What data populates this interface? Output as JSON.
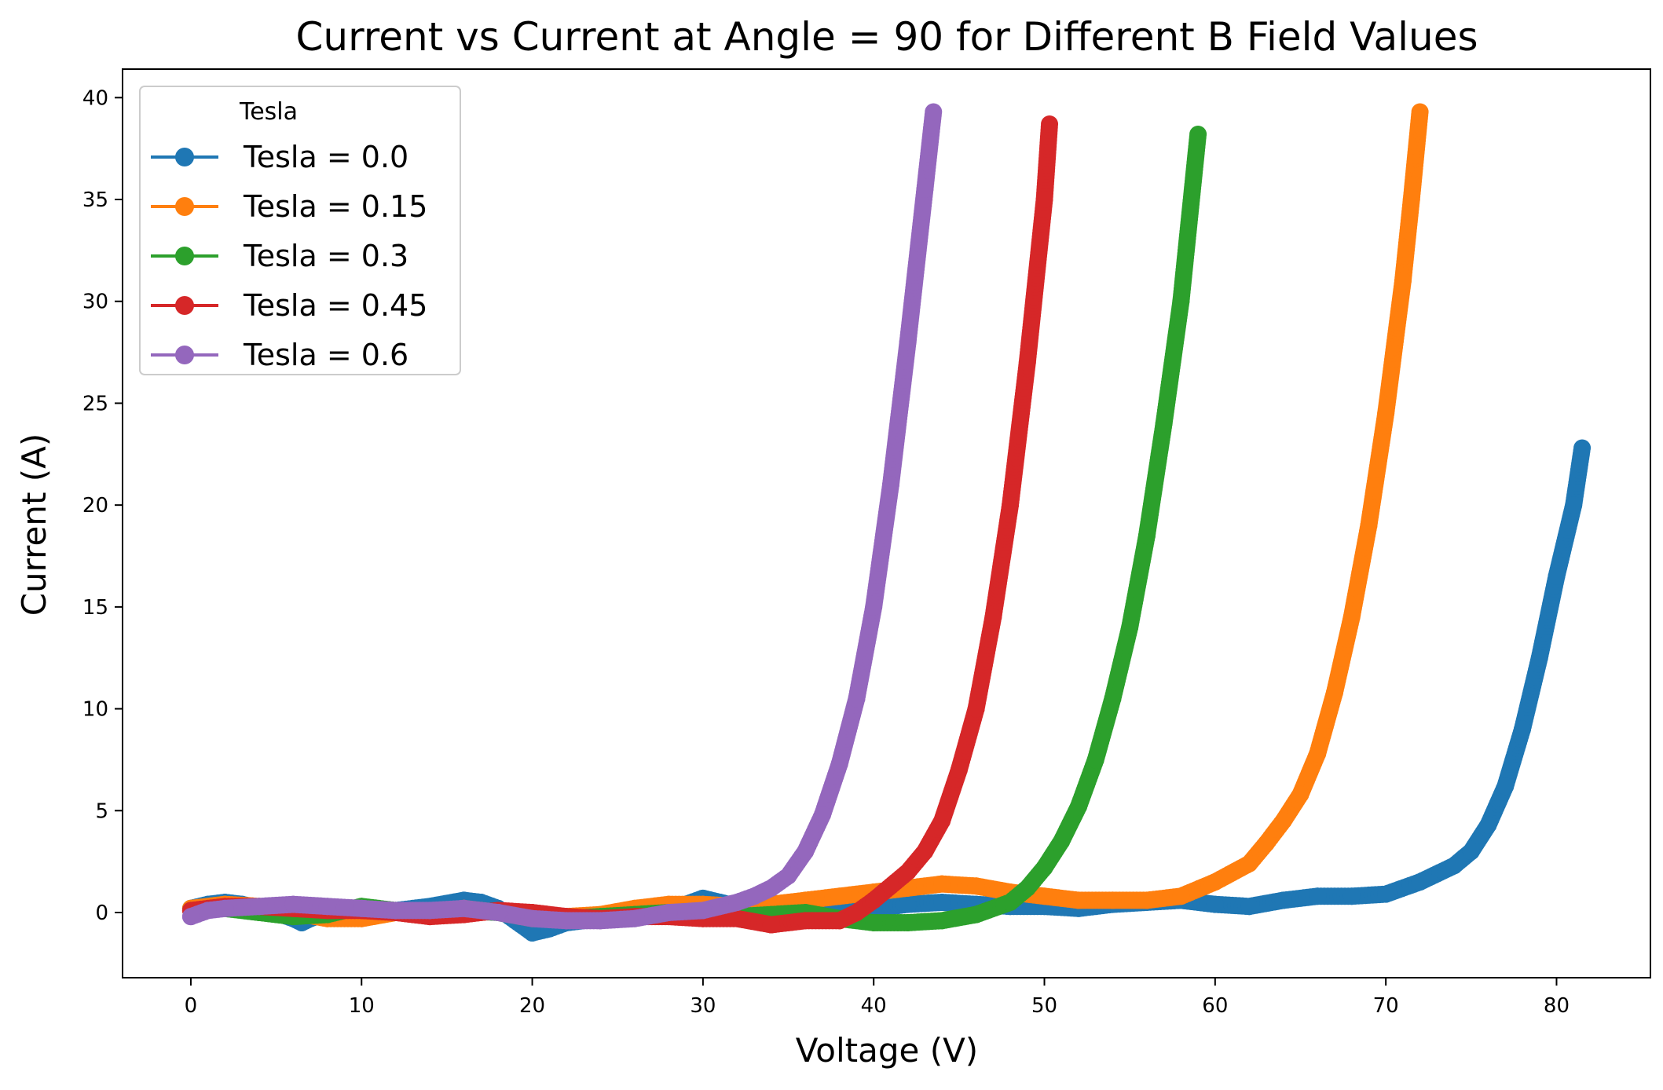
{
  "chart_data": {
    "type": "line",
    "title": "Current vs Current at Angle = 90 for Different B Field Values",
    "xlabel": "Voltage (V)",
    "ylabel": "Current (A)",
    "xlim": [
      -4,
      85.5
    ],
    "ylim": [
      -3.2,
      41.4
    ],
    "xticks": [
      0,
      10,
      20,
      30,
      40,
      50,
      60,
      70,
      80
    ],
    "yticks": [
      0,
      5,
      10,
      15,
      20,
      25,
      30,
      35,
      40
    ],
    "grid": false,
    "legend": {
      "title": "Tesla",
      "placement": "top-left"
    },
    "series": [
      {
        "name": "Tesla = 0.0",
        "color": "#1f77b4",
        "x": [
          0,
          1,
          2,
          3,
          4,
          5,
          6,
          6.5,
          7,
          8,
          9,
          10,
          12,
          14,
          16,
          17,
          18,
          19,
          20,
          21,
          22,
          24,
          26,
          28,
          30,
          31,
          32,
          34,
          36,
          38,
          40,
          42,
          44,
          46,
          48,
          50,
          52,
          54,
          56,
          58,
          60,
          62,
          64,
          66,
          68,
          70,
          72,
          74,
          75,
          76,
          77,
          78,
          79,
          80,
          81,
          81.5
        ],
        "values": [
          0.2,
          0.4,
          0.5,
          0.4,
          0.2,
          0.0,
          -0.3,
          -0.5,
          -0.3,
          0.0,
          0.1,
          0.2,
          0.1,
          0.3,
          0.6,
          0.5,
          0.2,
          -0.4,
          -1.0,
          -0.8,
          -0.5,
          -0.3,
          -0.2,
          0.1,
          0.7,
          0.5,
          0.3,
          0.2,
          0.3,
          0.2,
          0.2,
          0.4,
          0.5,
          0.4,
          0.3,
          0.3,
          0.2,
          0.4,
          0.5,
          0.6,
          0.4,
          0.3,
          0.6,
          0.8,
          0.8,
          0.9,
          1.5,
          2.3,
          3.0,
          4.3,
          6.2,
          9.0,
          12.5,
          16.5,
          20.0,
          22.8
        ]
      },
      {
        "name": "Tesla = 0.15",
        "color": "#ff7f0e",
        "x": [
          0,
          2,
          4,
          6,
          8,
          10,
          12,
          14,
          16,
          18,
          20,
          22,
          24,
          26,
          28,
          30,
          32,
          34,
          36,
          38,
          40,
          42,
          44,
          46,
          48,
          50,
          52,
          54,
          56,
          58,
          60,
          62,
          63,
          64,
          65,
          66,
          67,
          68,
          69,
          70,
          71,
          71.5,
          72
        ],
        "values": [
          0.2,
          0.4,
          0.3,
          0.0,
          -0.3,
          -0.3,
          0.0,
          0.0,
          0.2,
          0.0,
          -0.2,
          -0.2,
          -0.1,
          0.2,
          0.4,
          0.4,
          0.3,
          0.4,
          0.6,
          0.8,
          1.0,
          1.2,
          1.4,
          1.3,
          1.0,
          0.8,
          0.6,
          0.6,
          0.6,
          0.8,
          1.5,
          2.4,
          3.4,
          4.5,
          5.8,
          7.8,
          10.8,
          14.5,
          19.0,
          24.5,
          31.0,
          35.0,
          39.3
        ]
      },
      {
        "name": "Tesla = 0.3",
        "color": "#2ca02c",
        "x": [
          0,
          2,
          4,
          6,
          8,
          10,
          12,
          14,
          16,
          18,
          20,
          22,
          24,
          26,
          28,
          30,
          32,
          34,
          36,
          38,
          40,
          42,
          44,
          46,
          48,
          49,
          50,
          51,
          52,
          53,
          54,
          55,
          56,
          57,
          58,
          59
        ],
        "values": [
          0.1,
          0.2,
          0.0,
          -0.2,
          -0.1,
          0.3,
          0.1,
          0.0,
          0.1,
          0.0,
          -0.3,
          -0.3,
          -0.2,
          -0.1,
          0.0,
          -0.1,
          -0.2,
          -0.1,
          0.0,
          -0.3,
          -0.5,
          -0.5,
          -0.4,
          -0.1,
          0.5,
          1.2,
          2.2,
          3.5,
          5.2,
          7.5,
          10.5,
          14.0,
          18.5,
          24.0,
          30.0,
          38.2
        ]
      },
      {
        "name": "Tesla = 0.45",
        "color": "#d62728",
        "x": [
          0,
          2,
          4,
          6,
          8,
          10,
          12,
          14,
          16,
          18,
          20,
          22,
          24,
          26,
          28,
          30,
          32,
          34,
          36,
          38,
          39,
          40,
          41,
          42,
          43,
          44,
          45,
          46,
          47,
          48,
          49,
          50,
          50.3
        ],
        "values": [
          0.1,
          0.3,
          0.3,
          0.2,
          0.1,
          0.1,
          0.0,
          -0.2,
          -0.1,
          0.1,
          0.0,
          -0.2,
          -0.3,
          -0.2,
          -0.2,
          -0.3,
          -0.3,
          -0.6,
          -0.4,
          -0.4,
          0.0,
          0.6,
          1.3,
          2.0,
          3.0,
          4.5,
          7.0,
          10.0,
          14.5,
          20.0,
          27.0,
          35.0,
          38.7
        ]
      },
      {
        "name": "Tesla = 0.6",
        "color": "#9467bd",
        "x": [
          0,
          1,
          2,
          4,
          6,
          8,
          10,
          12,
          14,
          16,
          18,
          20,
          22,
          24,
          26,
          28,
          30,
          32,
          33,
          34,
          35,
          36,
          37,
          38,
          39,
          40,
          41,
          42,
          43,
          43.5
        ],
        "values": [
          -0.2,
          0.1,
          0.2,
          0.3,
          0.4,
          0.3,
          0.2,
          0.1,
          0.1,
          0.2,
          0.0,
          -0.3,
          -0.4,
          -0.4,
          -0.3,
          0.0,
          0.1,
          0.5,
          0.8,
          1.2,
          1.8,
          3.0,
          4.8,
          7.3,
          10.5,
          15.0,
          21.0,
          28.0,
          35.5,
          39.3
        ]
      }
    ]
  }
}
